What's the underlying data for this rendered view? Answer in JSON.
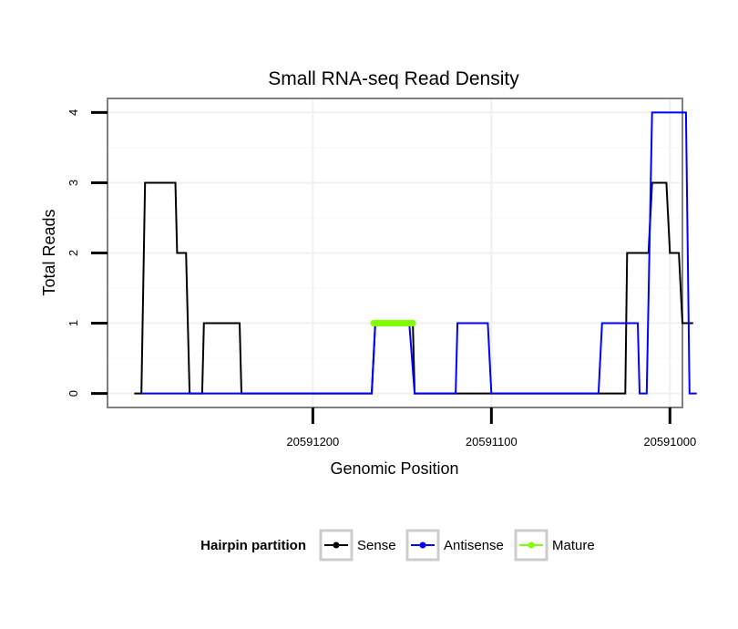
{
  "chart_data": {
    "type": "line",
    "title": "Small RNA-seq Read Density",
    "xlabel": "Genomic Position",
    "ylabel": "Total Reads",
    "x_reversed": true,
    "xlim": [
      20591315,
      20590993
    ],
    "ylim": [
      -0.2,
      4.2
    ],
    "x_ticks": [
      20591200,
      20591100,
      20591000
    ],
    "x_tick_labels": [
      "20591200",
      "20591100",
      "20591000"
    ],
    "y_ticks": [
      0,
      1,
      2,
      3,
      4
    ],
    "y_tick_labels": [
      "0",
      "1",
      "2",
      "3",
      "4"
    ],
    "grid": true,
    "legend": {
      "title": "Hairpin partition",
      "position": "bottom",
      "entries": [
        {
          "name": "Sense",
          "color": "#000000"
        },
        {
          "name": "Antisense",
          "color": "#0000ff"
        },
        {
          "name": "Mature",
          "color": "#7fff00"
        }
      ]
    },
    "series": [
      {
        "name": "Sense",
        "color": "#000000",
        "points": [
          [
            20591300,
            0
          ],
          [
            20591296,
            0
          ],
          [
            20591294,
            3
          ],
          [
            20591277,
            3
          ],
          [
            20591276,
            2
          ],
          [
            20591271,
            2
          ],
          [
            20591269,
            0
          ],
          [
            20591262,
            0
          ],
          [
            20591261,
            1
          ],
          [
            20591241,
            1
          ],
          [
            20591240,
            0
          ],
          [
            20591234,
            0
          ],
          [
            20591167,
            0
          ],
          [
            20591165,
            1
          ],
          [
            20591144,
            1
          ],
          [
            20591143,
            0
          ],
          [
            20591025,
            0
          ],
          [
            20591024,
            2
          ],
          [
            20591012,
            2
          ],
          [
            20591010,
            3
          ],
          [
            20591002,
            3
          ],
          [
            20591000,
            2
          ],
          [
            20590995,
            2
          ],
          [
            20590993,
            1
          ],
          [
            20590987,
            1
          ]
        ]
      },
      {
        "name": "Antisense",
        "color": "#0000ff",
        "points": [
          [
            20591296,
            0
          ],
          [
            20591234,
            0
          ],
          [
            20591167,
            0
          ],
          [
            20591165,
            1
          ],
          [
            20591146,
            1
          ],
          [
            20591143,
            0
          ],
          [
            20591120,
            0
          ],
          [
            20591119,
            1
          ],
          [
            20591102,
            1
          ],
          [
            20591100,
            0
          ],
          [
            20591040,
            0
          ],
          [
            20591038,
            1
          ],
          [
            20591018,
            1
          ],
          [
            20591017,
            0
          ],
          [
            20591013,
            0
          ],
          [
            20591010,
            4
          ],
          [
            20590991,
            4
          ],
          [
            20590989,
            0
          ],
          [
            20590985,
            0
          ]
        ]
      },
      {
        "name": "Mature",
        "color": "#7fff00",
        "points": [
          [
            20591166,
            1
          ],
          [
            20591144,
            1
          ]
        ]
      }
    ]
  }
}
